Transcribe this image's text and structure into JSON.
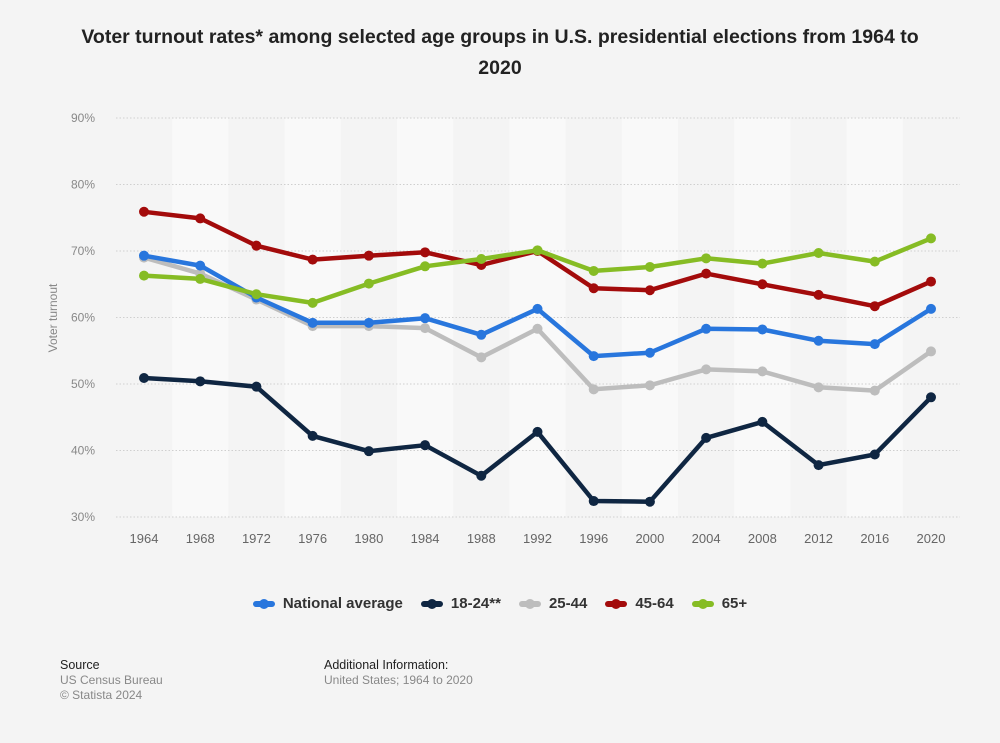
{
  "title": "Voter turnout rates* among selected age groups in U.S. presidential elections from 1964 to 2020",
  "source": {
    "heading": "Source",
    "lines": [
      "US Census Bureau",
      "© Statista 2024"
    ]
  },
  "additional": {
    "heading": "Additional Information:",
    "lines": [
      "United States; 1964 to 2020"
    ]
  },
  "chart_data": {
    "type": "line",
    "title": "Voter turnout rates* among selected age groups in U.S. presidential elections from 1964 to 2020",
    "xlabel": "",
    "ylabel": "Voter turnout",
    "x": [
      "1964",
      "1968",
      "1972",
      "1976",
      "1980",
      "1984",
      "1988",
      "1992",
      "1996",
      "2000",
      "2004",
      "2008",
      "2012",
      "2016",
      "2020"
    ],
    "ylim": [
      30,
      90
    ],
    "yticks": [
      30,
      40,
      50,
      60,
      70,
      80,
      90
    ],
    "ytick_labels": [
      "30%",
      "40%",
      "50%",
      "60%",
      "70%",
      "80%",
      "90%"
    ],
    "grid": true,
    "legend_position": "bottom",
    "series": [
      {
        "name": "National average",
        "color": "#2876dd",
        "values": [
          69.3,
          67.8,
          63.0,
          59.2,
          59.2,
          59.9,
          57.4,
          61.3,
          54.2,
          54.7,
          58.3,
          58.2,
          56.5,
          56.0,
          61.3
        ]
      },
      {
        "name": "18-24**",
        "color": "#0f2642",
        "values": [
          50.9,
          50.4,
          49.6,
          42.2,
          39.9,
          40.8,
          36.2,
          42.8,
          32.4,
          32.3,
          41.9,
          44.3,
          37.8,
          39.4,
          48.0
        ]
      },
      {
        "name": "25-44",
        "color": "#bdbdbd",
        "values": [
          69.0,
          66.6,
          62.7,
          58.7,
          58.7,
          58.4,
          54.0,
          58.3,
          49.2,
          49.8,
          52.2,
          51.9,
          49.5,
          49.0,
          54.9
        ]
      },
      {
        "name": "45-64",
        "color": "#a30b0b",
        "values": [
          75.9,
          74.9,
          70.8,
          68.7,
          69.3,
          69.8,
          67.9,
          70.0,
          64.4,
          64.1,
          66.6,
          65.0,
          63.4,
          61.7,
          65.4
        ]
      },
      {
        "name": "65+",
        "color": "#86bc24",
        "values": [
          66.3,
          65.8,
          63.5,
          62.2,
          65.1,
          67.7,
          68.8,
          70.1,
          67.0,
          67.6,
          68.9,
          68.1,
          69.7,
          68.4,
          71.9
        ]
      }
    ]
  }
}
